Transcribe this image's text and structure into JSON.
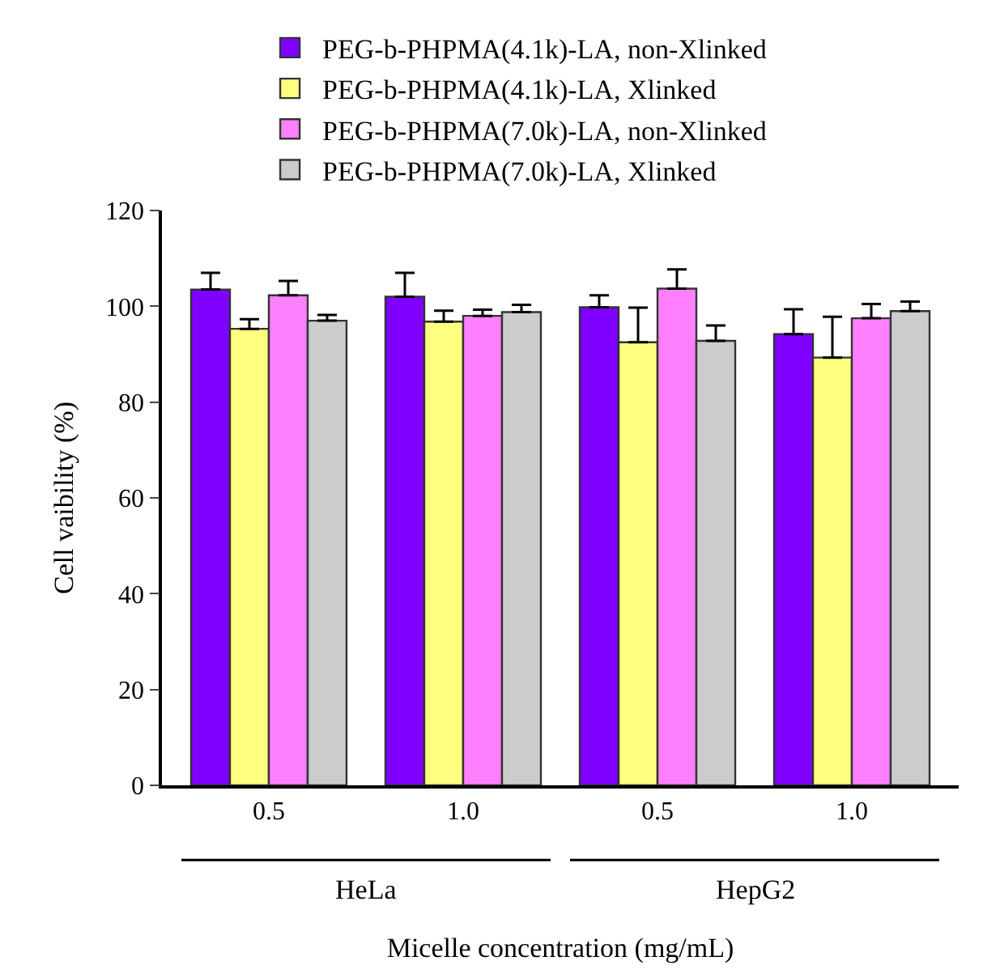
{
  "chart_data": {
    "type": "bar",
    "xlabel": "Micelle concentration (mg/mL)",
    "ylabel": "Cell vaibility (%)",
    "categories": [
      "0.5",
      "1.0",
      "0.5",
      "1.0"
    ],
    "series": [
      {
        "name": "PEG-b-PHPMA(4.1k)-LA, non-Xlinked",
        "color": "#7f00ff",
        "values": [
          103.5,
          102,
          99.8,
          94.2
        ],
        "errors": [
          [
            103.5,
            107
          ],
          [
            102,
            107
          ],
          [
            99.8,
            102.3
          ],
          [
            94.2,
            99.4
          ]
        ]
      },
      {
        "name": "PEG-b-PHPMA(4.1k)-LA, Xlinked",
        "color": "#ffff80",
        "values": [
          95.3,
          96.8,
          92.5,
          89.3
        ],
        "errors": [
          [
            95.3,
            97.3
          ],
          [
            96.8,
            99.1
          ],
          [
            92.5,
            99.7
          ],
          [
            89.3,
            97.8
          ]
        ]
      },
      {
        "name": "PEG-b-PHPMA(7.0k)-LA, non-Xlinked",
        "color": "#ff80ff",
        "values": [
          102.3,
          98,
          103.7,
          97.5
        ],
        "errors": [
          [
            102.3,
            105.3
          ],
          [
            98,
            99.3
          ],
          [
            103.7,
            107.7
          ],
          [
            97.5,
            100.5
          ]
        ]
      },
      {
        "name": "PEG-b-PHPMA(7.0k)-LA, Xlinked",
        "color": "#cccccc",
        "values": [
          97,
          98.8,
          92.8,
          99
        ],
        "errors": [
          [
            97,
            98.2
          ],
          [
            98.8,
            100.3
          ],
          [
            92.8,
            96
          ],
          [
            99,
            101
          ]
        ]
      }
    ],
    "annotations": [
      "HeLa",
      "HepG2"
    ],
    "ylim": [
      0,
      120
    ],
    "yticks": [
      0,
      20,
      40,
      60,
      80,
      100,
      120
    ],
    "legend": "top"
  }
}
